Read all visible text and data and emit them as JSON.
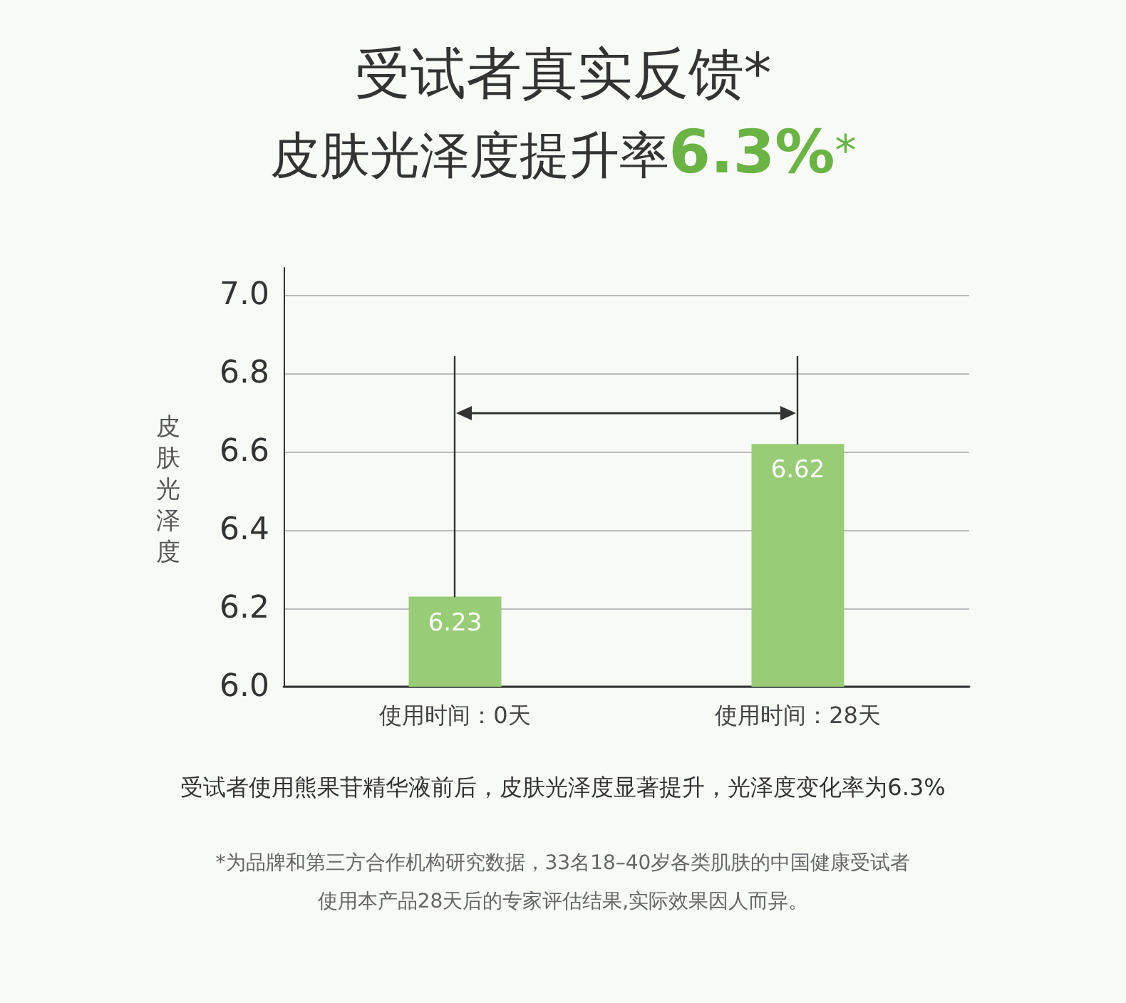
{
  "chart_data": {
    "type": "bar",
    "title": "受试者真实反馈*",
    "subtitle": "皮肤光泽度提升率6.3%*",
    "ylabel": "皮肤光泽度",
    "categories": [
      "使用时间：0天",
      "使用时间：28天"
    ],
    "values": [
      6.23,
      6.62
    ],
    "color": "#99cc77",
    "data_labels": true,
    "ylim": [
      6,
      7.07
    ],
    "yticks": [
      {
        "value": 6,
        "label": "6.0"
      },
      6.2,
      6.4,
      6.6,
      6.8,
      {
        "value": 7,
        "label": "7.0"
      }
    ],
    "grid": "y",
    "annotations": [
      "受试者使用熊果苷精华液前后，皮肤光泽度显著提升，光泽度变化率为6.3%",
      "*为品牌和第三方合作机构研究数据，33名18–40岁各类肌肤的中国健康受试者",
      "使用本产品28天后的专家评估结果,实际效果因人而异。"
    ]
  }
}
